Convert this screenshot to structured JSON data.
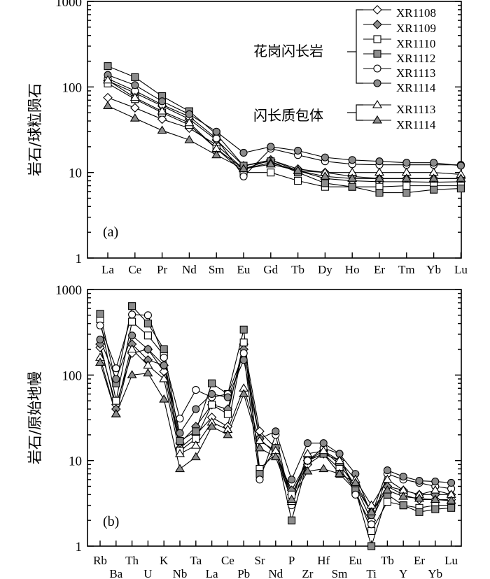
{
  "legend": {
    "granodiorite_group": "花岗闪长岩",
    "enclave_group": "闪长质包体",
    "entries": [
      {
        "label": "XR1108",
        "marker": "diamond-open"
      },
      {
        "label": "XR1109",
        "marker": "diamond-filled"
      },
      {
        "label": "XR1110",
        "marker": "square-open"
      },
      {
        "label": "XR1112",
        "marker": "square-filled"
      },
      {
        "label": "XR1113",
        "marker": "circle-open"
      },
      {
        "label": "XR1114",
        "marker": "circle-filled"
      },
      {
        "label": "XR1113",
        "marker": "triangle-open"
      },
      {
        "label": "XR1114",
        "marker": "triangle-filled"
      }
    ]
  },
  "colors": {
    "line": "#000000",
    "filled_marker": "#8c8c8c",
    "open_marker": "#ffffff"
  },
  "chart_data": [
    {
      "type": "line",
      "panel_label": "(a)",
      "ylabel": "岩石/球粒陨石",
      "yscale": "log",
      "ylim": [
        1,
        1000
      ],
      "y_ticks": [
        "1",
        "10",
        "100",
        "1000"
      ],
      "categories": [
        "La",
        "Ce",
        "Pr",
        "Nd",
        "Sm",
        "Eu",
        "Gd",
        "Tb",
        "Dy",
        "Ho",
        "Er",
        "Tm",
        "Yb",
        "Lu"
      ],
      "series": [
        {
          "name": "XR1108",
          "marker": "diamond-open",
          "values": [
            75,
            57,
            42,
            33,
            21,
            11,
            14,
            10.5,
            8.5,
            8,
            7.8,
            7.8,
            7.7,
            7.8
          ]
        },
        {
          "name": "XR1109",
          "marker": "diamond-filled",
          "values": [
            118,
            85,
            60,
            42,
            24,
            12,
            14,
            11,
            10,
            9,
            8.5,
            8.5,
            8.5,
            8.5
          ]
        },
        {
          "name": "XR1110",
          "marker": "square-open",
          "values": [
            110,
            72,
            50,
            36,
            19,
            10,
            10,
            8,
            6.8,
            6.8,
            6.8,
            7,
            7,
            7
          ]
        },
        {
          "name": "XR1112",
          "marker": "square-filled",
          "values": [
            175,
            130,
            78,
            52,
            28,
            12,
            13.5,
            10,
            7.5,
            6.8,
            5.8,
            5.8,
            6.3,
            6.5
          ]
        },
        {
          "name": "XR1113",
          "marker": "circle-open",
          "values": [
            125,
            90,
            62,
            45,
            25,
            9,
            19,
            16,
            13.5,
            12.5,
            12.3,
            12.3,
            12.3,
            12.3
          ]
        },
        {
          "name": "XR1114",
          "marker": "circle-filled",
          "values": [
            138,
            105,
            68,
            48,
            30,
            17,
            20,
            18,
            15,
            14,
            13.5,
            13,
            13,
            12
          ]
        },
        {
          "name": "XR1113 (enclave)",
          "marker": "triangle-open",
          "values": [
            120,
            75,
            52,
            38,
            19,
            11,
            13,
            10.5,
            10,
            10,
            10,
            10,
            10,
            9.5
          ]
        },
        {
          "name": "XR1114 (enclave)",
          "marker": "triangle-filled",
          "values": [
            60,
            43,
            31,
            24,
            16,
            11,
            12.5,
            10.5,
            9,
            8.5,
            8.5,
            8.5,
            8.5,
            8.5
          ]
        }
      ]
    },
    {
      "type": "line",
      "panel_label": "(b)",
      "ylabel": "岩石/原始地幔",
      "yscale": "log",
      "ylim": [
        1,
        1000
      ],
      "y_ticks": [
        "1",
        "10",
        "100",
        "1000"
      ],
      "categories": [
        "Rb",
        "Ba",
        "Th",
        "U",
        "K",
        "Nb",
        "Ta",
        "La",
        "Ce",
        "Pb",
        "Sr",
        "Nd",
        "P",
        "Zr",
        "Hf",
        "Sm",
        "Eu",
        "Ti",
        "Tb",
        "Y",
        "Er",
        "Yb",
        "Lu"
      ],
      "series": [
        {
          "name": "XR1108",
          "marker": "diamond-open",
          "values": [
            210,
            45,
            180,
            200,
            110,
            14,
            20,
            32,
            25,
            230,
            22,
            14,
            4,
            9,
            12,
            10,
            5,
            2,
            5,
            4,
            3.5,
            3.5,
            3.5
          ]
        },
        {
          "name": "XR1109",
          "marker": "diamond-filled",
          "values": [
            230,
            40,
            230,
            150,
            130,
            16,
            25,
            45,
            40,
            200,
            18,
            12,
            4.5,
            10,
            13,
            9,
            5,
            2.5,
            5,
            4.5,
            4,
            4,
            4
          ]
        },
        {
          "name": "XR1110",
          "marker": "square-open",
          "values": [
            450,
            50,
            420,
            290,
            170,
            13,
            18,
            45,
            35,
            240,
            8,
            12,
            4,
            10,
            12,
            8,
            4.5,
            1.5,
            3.3,
            3,
            2.8,
            3,
            3
          ]
        },
        {
          "name": "XR1112",
          "marker": "square-filled",
          "values": [
            520,
            80,
            640,
            400,
            200,
            17,
            22,
            80,
            60,
            340,
            7,
            14,
            2,
            10,
            12,
            7,
            4.5,
            1,
            4,
            3,
            2.5,
            2.7,
            2.8
          ]
        },
        {
          "name": "XR1113",
          "marker": "circle-open",
          "values": [
            380,
            120,
            510,
            500,
            160,
            31,
            67,
            55,
            60,
            180,
            6,
            20,
            3,
            10,
            14,
            12,
            4,
            1.8,
            7,
            6,
            5.5,
            5,
            4.7
          ]
        },
        {
          "name": "XR1114",
          "marker": "circle-filled",
          "values": [
            260,
            90,
            290,
            200,
            130,
            21,
            40,
            60,
            55,
            150,
            18,
            22,
            6,
            16,
            16,
            12,
            7,
            2.3,
            7.7,
            6.5,
            5.8,
            5.7,
            5.5
          ]
        },
        {
          "name": "XR1113 (enclave)",
          "marker": "triangle-open",
          "values": [
            160,
            35,
            200,
            130,
            90,
            12,
            15,
            28,
            23,
            70,
            17,
            13,
            3.3,
            12,
            13,
            10,
            6,
            3,
            6,
            4.5,
            4,
            4.5,
            4
          ]
        },
        {
          "name": "XR1114 (enclave)",
          "marker": "triangle-filled",
          "values": [
            140,
            35,
            100,
            105,
            52,
            8,
            11,
            25,
            20,
            60,
            14,
            11,
            3.5,
            7.5,
            8,
            7,
            5.5,
            2.5,
            4.5,
            3.8,
            3.6,
            3.5,
            3.4
          ]
        }
      ]
    }
  ]
}
